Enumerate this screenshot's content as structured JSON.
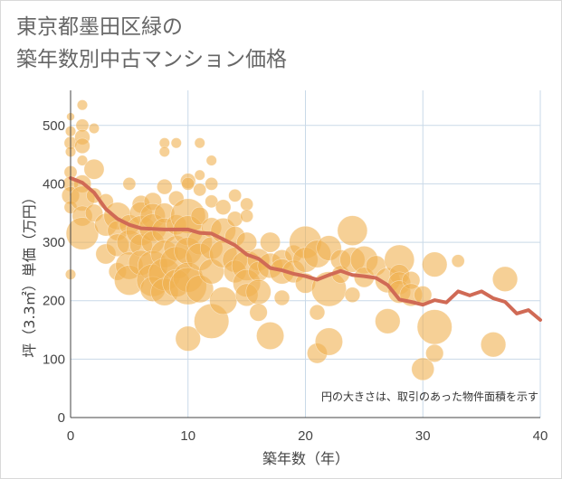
{
  "title_lines": [
    "東京都墨田区緑の",
    "築年数別中古マンション価格"
  ],
  "chart_data": {
    "type": "scatter",
    "title": "東京都墨田区緑の築年数別中古マンション価格",
    "xlabel": "築年数（年）",
    "ylabel": "坪（3.3㎡）単価（万円）",
    "xlim": [
      0,
      40
    ],
    "ylim": [
      0,
      560
    ],
    "xticks": [
      0,
      10,
      20,
      30,
      40
    ],
    "yticks": [
      0,
      100,
      200,
      300,
      400,
      500
    ],
    "grid": true,
    "note": "円の大きさは、取引のあった物件面積を示す",
    "colors": {
      "bubble": "#f0b050",
      "line": "#d06a55",
      "grid": "#c9d9e8"
    },
    "series": [
      {
        "type": "bubble",
        "points": [
          [
            0,
            515,
            1
          ],
          [
            0,
            490,
            2
          ],
          [
            0,
            470,
            3
          ],
          [
            0,
            455,
            2
          ],
          [
            0,
            420,
            3
          ],
          [
            0,
            400,
            4
          ],
          [
            0,
            380,
            5
          ],
          [
            0,
            360,
            3
          ],
          [
            0,
            245,
            2
          ],
          [
            1,
            535,
            2
          ],
          [
            1,
            500,
            3
          ],
          [
            1,
            480,
            4
          ],
          [
            1,
            465,
            4
          ],
          [
            1,
            440,
            2
          ],
          [
            1,
            400,
            5
          ],
          [
            1,
            375,
            8
          ],
          [
            1,
            345,
            6
          ],
          [
            1,
            315,
            11
          ],
          [
            2,
            495,
            2
          ],
          [
            2,
            425,
            6
          ],
          [
            2,
            380,
            4
          ],
          [
            2,
            350,
            5
          ],
          [
            3,
            370,
            4
          ],
          [
            3,
            330,
            7
          ],
          [
            3,
            280,
            6
          ],
          [
            4,
            345,
            9
          ],
          [
            4,
            320,
            6
          ],
          [
            4,
            295,
            7
          ],
          [
            4,
            250,
            5
          ],
          [
            5,
            400,
            3
          ],
          [
            5,
            330,
            6
          ],
          [
            5,
            300,
            8
          ],
          [
            5,
            260,
            9
          ],
          [
            5,
            235,
            10
          ],
          [
            6,
            365,
            5
          ],
          [
            6,
            350,
            7
          ],
          [
            6,
            320,
            10
          ],
          [
            6,
            295,
            7
          ],
          [
            6,
            265,
            8
          ],
          [
            7,
            370,
            5
          ],
          [
            7,
            345,
            8
          ],
          [
            7,
            325,
            9
          ],
          [
            7,
            300,
            7
          ],
          [
            7,
            260,
            10
          ],
          [
            7,
            235,
            11
          ],
          [
            7,
            220,
            8
          ],
          [
            8,
            470,
            2
          ],
          [
            8,
            455,
            2
          ],
          [
            8,
            395,
            4
          ],
          [
            8,
            350,
            6
          ],
          [
            8,
            320,
            8
          ],
          [
            8,
            280,
            9
          ],
          [
            8,
            245,
            11
          ],
          [
            8,
            215,
            9
          ],
          [
            9,
            470,
            2
          ],
          [
            9,
            375,
            4
          ],
          [
            9,
            330,
            6
          ],
          [
            9,
            290,
            8
          ],
          [
            9,
            265,
            11
          ],
          [
            9,
            230,
            9
          ],
          [
            10,
            405,
            4
          ],
          [
            10,
            400,
            3
          ],
          [
            10,
            345,
            12
          ],
          [
            10,
            320,
            10
          ],
          [
            10,
            285,
            9
          ],
          [
            10,
            240,
            10
          ],
          [
            10,
            225,
            13
          ],
          [
            10,
            135,
            8
          ],
          [
            11,
            470,
            2
          ],
          [
            11,
            415,
            2
          ],
          [
            11,
            390,
            3
          ],
          [
            11,
            345,
            5
          ],
          [
            11,
            300,
            8
          ],
          [
            11,
            275,
            9
          ],
          [
            11,
            220,
            9
          ],
          [
            12,
            440,
            2
          ],
          [
            12,
            400,
            3
          ],
          [
            12,
            370,
            3
          ],
          [
            12,
            325,
            6
          ],
          [
            12,
            290,
            7
          ],
          [
            12,
            250,
            8
          ],
          [
            12,
            165,
            12
          ],
          [
            13,
            360,
            4
          ],
          [
            13,
            320,
            8
          ],
          [
            13,
            280,
            9
          ],
          [
            13,
            200,
            9
          ],
          [
            14,
            380,
            3
          ],
          [
            14,
            340,
            4
          ],
          [
            14,
            310,
            6
          ],
          [
            14,
            270,
            8
          ],
          [
            14,
            250,
            7
          ],
          [
            15,
            365,
            3
          ],
          [
            15,
            345,
            3
          ],
          [
            15,
            300,
            6
          ],
          [
            15,
            260,
            10
          ],
          [
            15,
            230,
            9
          ],
          [
            15,
            210,
            7
          ],
          [
            16,
            270,
            7
          ],
          [
            16,
            250,
            6
          ],
          [
            16,
            215,
            8
          ],
          [
            16,
            180,
            5
          ],
          [
            17,
            300,
            6
          ],
          [
            17,
            260,
            8
          ],
          [
            17,
            140,
            9
          ],
          [
            18,
            270,
            6
          ],
          [
            18,
            250,
            8
          ],
          [
            18,
            205,
            4
          ],
          [
            19,
            280,
            5
          ],
          [
            19,
            250,
            7
          ],
          [
            20,
            300,
            11
          ],
          [
            20,
            270,
            8
          ],
          [
            20,
            230,
            6
          ],
          [
            21,
            280,
            9
          ],
          [
            21,
            180,
            4
          ],
          [
            21,
            110,
            6
          ],
          [
            22,
            290,
            8
          ],
          [
            22,
            220,
            12
          ],
          [
            22,
            130,
            9
          ],
          [
            23,
            270,
            6
          ],
          [
            23,
            245,
            5
          ],
          [
            24,
            320,
            10
          ],
          [
            24,
            270,
            8
          ],
          [
            24,
            210,
            4
          ],
          [
            25,
            270,
            9
          ],
          [
            25,
            240,
            6
          ],
          [
            26,
            260,
            6
          ],
          [
            27,
            235,
            8
          ],
          [
            27,
            165,
            8
          ],
          [
            28,
            270,
            10
          ],
          [
            28,
            245,
            6
          ],
          [
            28,
            230,
            7
          ],
          [
            28,
            215,
            7
          ],
          [
            29,
            235,
            5
          ],
          [
            29,
            210,
            7
          ],
          [
            30,
            210,
            5
          ],
          [
            30,
            83,
            7
          ],
          [
            31,
            262,
            8
          ],
          [
            31,
            155,
            12
          ],
          [
            31,
            110,
            5
          ],
          [
            33,
            268,
            3
          ],
          [
            36,
            125,
            8
          ],
          [
            37,
            237,
            8
          ]
        ]
      },
      {
        "type": "line",
        "points": [
          [
            0,
            410
          ],
          [
            1,
            402
          ],
          [
            2,
            385
          ],
          [
            3,
            357
          ],
          [
            4,
            340
          ],
          [
            5,
            330
          ],
          [
            6,
            324
          ],
          [
            7,
            323
          ],
          [
            8,
            322
          ],
          [
            9,
            322
          ],
          [
            10,
            322
          ],
          [
            11,
            316
          ],
          [
            12,
            315
          ],
          [
            13,
            305
          ],
          [
            14,
            295
          ],
          [
            15,
            279
          ],
          [
            16,
            272
          ],
          [
            17,
            256
          ],
          [
            18,
            252
          ],
          [
            19,
            246
          ],
          [
            20,
            242
          ],
          [
            21,
            236
          ],
          [
            22,
            244
          ],
          [
            23,
            251
          ],
          [
            24,
            244
          ],
          [
            25,
            242
          ],
          [
            26,
            239
          ],
          [
            27,
            227
          ],
          [
            28,
            202
          ],
          [
            29,
            198
          ],
          [
            30,
            193
          ],
          [
            31,
            201
          ],
          [
            32,
            197
          ],
          [
            33,
            216
          ],
          [
            34,
            209
          ],
          [
            35,
            216
          ],
          [
            36,
            204
          ],
          [
            37,
            198
          ],
          [
            38,
            178
          ],
          [
            39,
            184
          ],
          [
            40,
            167
          ]
        ]
      }
    ]
  }
}
